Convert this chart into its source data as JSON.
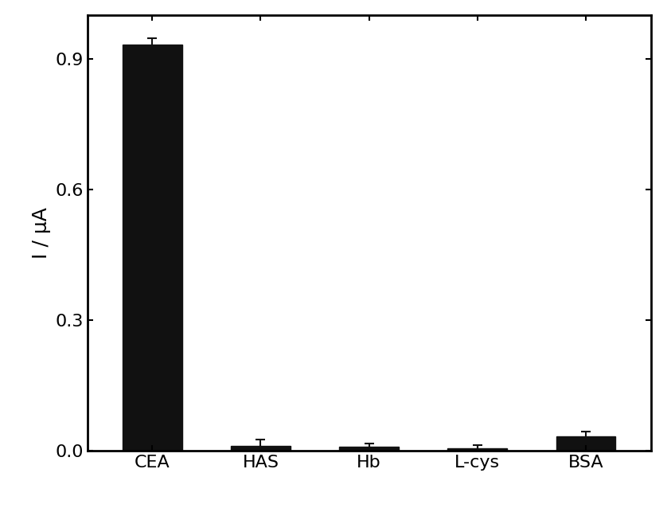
{
  "categories": [
    "CEA",
    "HAS",
    "Hb",
    "L-cys",
    "BSA"
  ],
  "values": [
    0.932,
    0.011,
    0.009,
    0.006,
    0.033
  ],
  "errors": [
    0.016,
    0.014,
    0.007,
    0.006,
    0.01
  ],
  "bar_color": "#111111",
  "bar_width": 0.55,
  "ylabel": "I / μA",
  "ylim": [
    0,
    1.0
  ],
  "yticks": [
    0.0,
    0.3,
    0.6,
    0.9
  ],
  "background_color": "#ffffff",
  "ylabel_fontsize": 18,
  "tick_fontsize": 16,
  "xlabel_fontsize": 16,
  "capsize": 4,
  "ecolor": "#111111",
  "elinewidth": 1.5,
  "spine_linewidth": 2.0,
  "figsize": [
    8.43,
    6.43
  ],
  "dpi": 100
}
